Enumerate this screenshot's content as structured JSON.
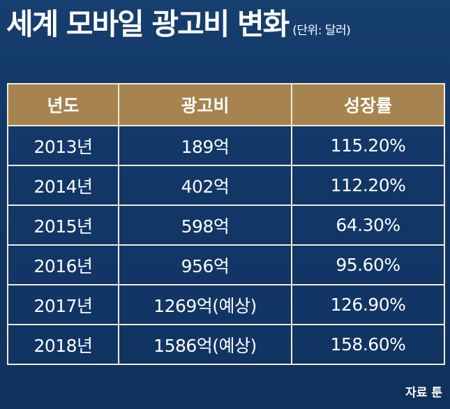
{
  "title": "세계 모바일 광고비 변화",
  "unit": "(단위: 달러)",
  "source": "자료 툰",
  "chart_data": {
    "type": "table",
    "columns": [
      "년도",
      "광고비",
      "성장률"
    ],
    "rows": [
      [
        "2013년",
        "189억",
        "115.20%"
      ],
      [
        "2014년",
        "402억",
        "112.20%"
      ],
      [
        "2015년",
        "598억",
        "64.30%"
      ],
      [
        "2016년",
        "956억",
        "95.60%"
      ],
      [
        "2017년",
        "1269억(예상)",
        "126.90%"
      ],
      [
        "2018년",
        "1586억(예상)",
        "158.60%"
      ]
    ]
  }
}
